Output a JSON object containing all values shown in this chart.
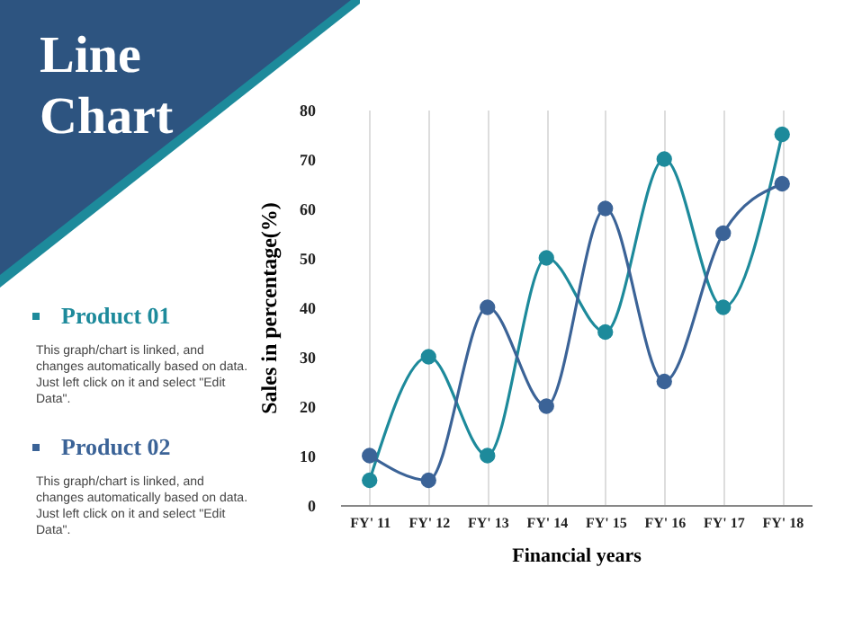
{
  "chart_data": {
    "type": "line",
    "title": "Line Chart",
    "xlabel": "Financial years",
    "ylabel": "Sales in percentage(%)",
    "categories": [
      "FY' 11",
      "FY' 12",
      "FY' 13",
      "FY' 14",
      "FY' 15",
      "FY' 16",
      "FY' 17",
      "FY' 18"
    ],
    "series": [
      {
        "name": "Product 01",
        "color": "#1d8a9b",
        "values": [
          5,
          30,
          10,
          50,
          35,
          70,
          40,
          75
        ]
      },
      {
        "name": "Product 02",
        "color": "#3b6397",
        "values": [
          10,
          5,
          40,
          20,
          60,
          25,
          55,
          65
        ]
      }
    ],
    "ylim": [
      0,
      80
    ],
    "yticks": [
      0,
      10,
      20,
      30,
      40,
      50,
      60,
      70,
      80
    ],
    "grid": "x",
    "legend": "left",
    "marker": "circle",
    "annotations": [
      "This graph/chart is linked, and changes automatically based on data. Just left click on it and select \"Edit Data\".",
      "This graph/chart is linked, and changes automatically based on data. Just left click on it and select \"Edit Data\"."
    ]
  }
}
